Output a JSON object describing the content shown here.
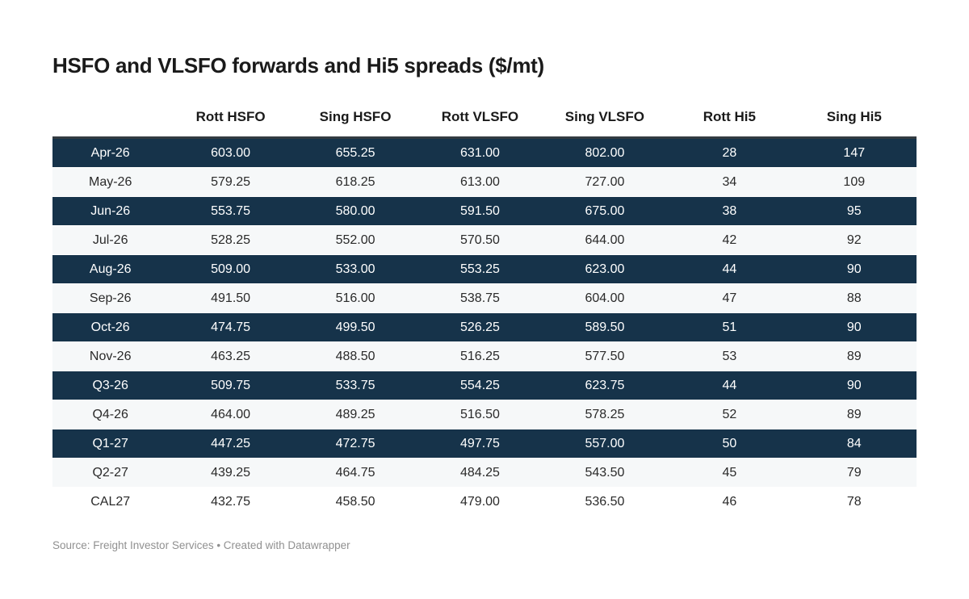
{
  "title": "HSFO and VLSFO forwards and Hi5 spreads ($/mt)",
  "footer": {
    "text": "Source: Freight Investor Services • Created with Datawrapper"
  },
  "colors": {
    "highlight_row_bg": "#16334a",
    "highlight_row_text": "#ffffff",
    "stripe_row_bg": "#f6f8f9",
    "plain_row_bg": "#ffffff",
    "top_border": "#333b41",
    "title_text": "#1a1a1a",
    "header_text": "#1a1a1a",
    "body_text": "#2a2a2a",
    "footer_text": "#909090"
  },
  "chart_data": {
    "type": "table",
    "title": "HSFO and VLSFO forwards and Hi5 spreads ($/mt)",
    "columns": [
      "",
      "Rott HSFO",
      "Sing HSFO",
      "Rott VLSFO",
      "Sing VLSFO",
      "Rott Hi5",
      "Sing Hi5"
    ],
    "rows": [
      {
        "label": "Apr-26",
        "values": [
          "603.00",
          "655.25",
          "631.00",
          "802.00",
          "28",
          "147"
        ],
        "highlight": true
      },
      {
        "label": "May-26",
        "values": [
          "579.25",
          "618.25",
          "613.00",
          "727.00",
          "34",
          "109"
        ],
        "highlight": false
      },
      {
        "label": "Jun-26",
        "values": [
          "553.75",
          "580.00",
          "591.50",
          "675.00",
          "38",
          "95"
        ],
        "highlight": true
      },
      {
        "label": "Jul-26",
        "values": [
          "528.25",
          "552.00",
          "570.50",
          "644.00",
          "42",
          "92"
        ],
        "highlight": false
      },
      {
        "label": "Aug-26",
        "values": [
          "509.00",
          "533.00",
          "553.25",
          "623.00",
          "44",
          "90"
        ],
        "highlight": true
      },
      {
        "label": "Sep-26",
        "values": [
          "491.50",
          "516.00",
          "538.75",
          "604.00",
          "47",
          "88"
        ],
        "highlight": false
      },
      {
        "label": "Oct-26",
        "values": [
          "474.75",
          "499.50",
          "526.25",
          "589.50",
          "51",
          "90"
        ],
        "highlight": true
      },
      {
        "label": "Nov-26",
        "values": [
          "463.25",
          "488.50",
          "516.25",
          "577.50",
          "53",
          "89"
        ],
        "highlight": false
      },
      {
        "label": "Q3-26",
        "values": [
          "509.75",
          "533.75",
          "554.25",
          "623.75",
          "44",
          "90"
        ],
        "highlight": true
      },
      {
        "label": "Q4-26",
        "values": [
          "464.00",
          "489.25",
          "516.50",
          "578.25",
          "52",
          "89"
        ],
        "highlight": false
      },
      {
        "label": "Q1-27",
        "values": [
          "447.25",
          "472.75",
          "497.75",
          "557.00",
          "50",
          "84"
        ],
        "highlight": true
      },
      {
        "label": "Q2-27",
        "values": [
          "439.25",
          "464.75",
          "484.25",
          "543.50",
          "45",
          "79"
        ],
        "highlight": false
      },
      {
        "label": "CAL27",
        "values": [
          "432.75",
          "458.50",
          "479.00",
          "536.50",
          "46",
          "78"
        ],
        "highlight": false
      }
    ]
  }
}
